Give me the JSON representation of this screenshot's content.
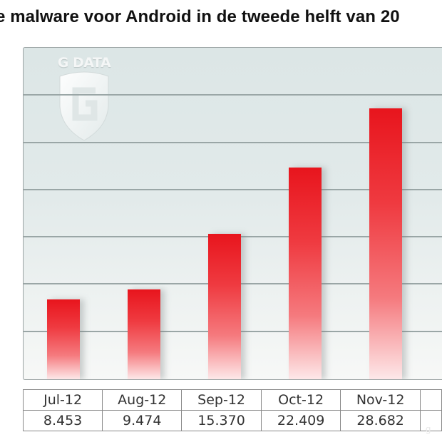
{
  "title": "e malware voor Android in de tweede helft van 20",
  "logo": {
    "text": "G DATA",
    "icon": "gdata-shield-icon"
  },
  "table": {
    "categories": [
      "Jul-12",
      "Aug-12",
      "Sep-12",
      "Oct-12",
      "Nov-12",
      ""
    ],
    "values": [
      "8.453",
      "9.474",
      "15.370",
      "22.409",
      "28.682",
      ""
    ]
  },
  "colors": {
    "bar_top": "#e8151d",
    "bar_bottom": "#fde8e9",
    "plot_background": "#dce6e6",
    "gridline": "#9aa6a6"
  },
  "chart_data": {
    "type": "bar",
    "title": "... malware voor Android in de tweede helft van 20..",
    "categories": [
      "Jul-12",
      "Aug-12",
      "Sep-12",
      "Oct-12",
      "Nov-12"
    ],
    "values": [
      8453,
      9474,
      15370,
      22409,
      28682
    ],
    "value_labels": [
      "8.453",
      "9.474",
      "15.370",
      "22.409",
      "28.682"
    ],
    "xlabel": "",
    "ylabel": "",
    "ylim": [
      0,
      35000
    ],
    "grid": true,
    "gridline_step": 5000,
    "legend": null,
    "data_table_below": true,
    "notes": "A sixth category column is partially cut off at the right edge; its label and value are not visible."
  }
}
